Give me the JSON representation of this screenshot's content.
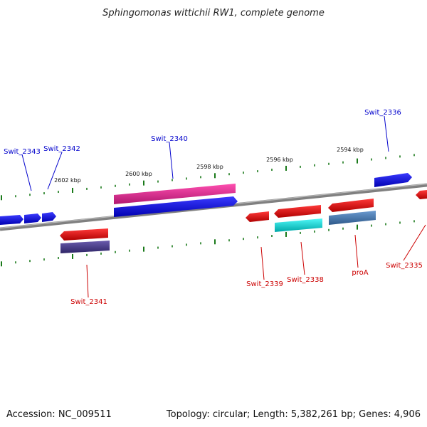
{
  "title": "Sphingomonas wittichii RW1, complete genome",
  "footer": {
    "accession": "Accession: NC_009511",
    "summary": "Topology: circular; Length: 5,382,261 bp; Genes: 4,906"
  },
  "ticks": [
    "2602 kbp",
    "2600 kbp",
    "2598 kbp",
    "2596 kbp",
    "2594 kbp"
  ],
  "genes_forward": [
    {
      "label": "Swit_2343",
      "color": "#0000cc"
    },
    {
      "label": "Swit_2342",
      "color": "#0000cc"
    },
    {
      "label": "Swit_2340",
      "color": "#0000cc"
    },
    {
      "label": "Swit_2336",
      "color": "#0000cc"
    }
  ],
  "genes_reverse": [
    {
      "label": "Swit_2341",
      "color": "#dd0000"
    },
    {
      "label": "Swit_2339",
      "color": "#dd0000"
    },
    {
      "label": "Swit_2338",
      "color": "#dd0000"
    },
    {
      "label": "proA",
      "color": "#dd0000"
    },
    {
      "label": "Swit_2335",
      "color": "#dd0000"
    }
  ],
  "colors": {
    "forward_gene": "#0000ee",
    "reverse_gene": "#ee0000",
    "forward_feature": "#e0208a",
    "reverse_feature_2341": "#4a3d86",
    "reverse_feature_2338": "#00e0e0",
    "reverse_feature_proA": "#4a7ab0",
    "backbone": "#808080",
    "ticks": "#1a7a1a"
  }
}
